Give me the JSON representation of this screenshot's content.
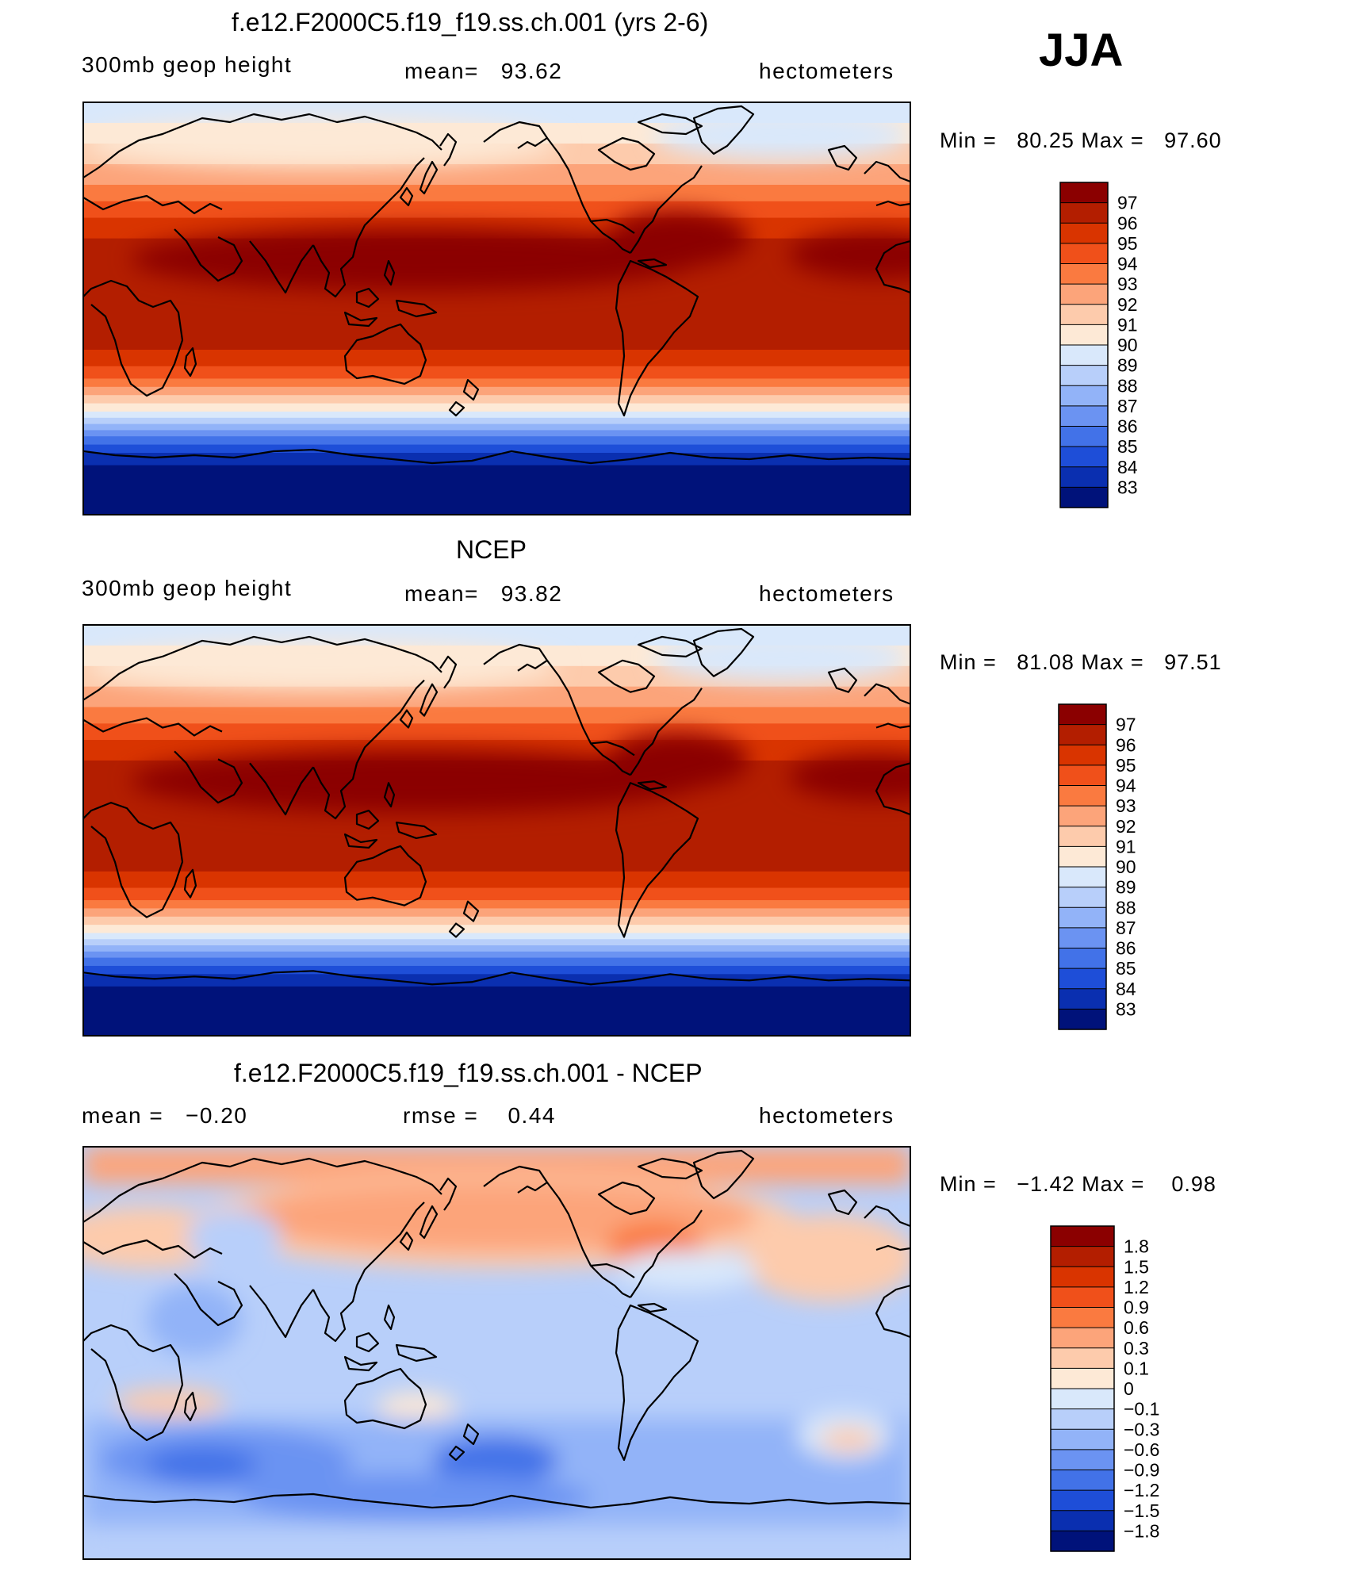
{
  "season": "JJA",
  "chart_data": [
    {
      "type": "heatmap",
      "title": "f.e12.F2000C5.f19_f19.ss.ch.001 (yrs 2-6)",
      "left_label": "300mb geop height",
      "center_label": "mean=   93.62",
      "units": "hectometers",
      "min_max_text": "Min =   80.25 Max =   97.60",
      "min": 80.25,
      "max": 97.6,
      "mean": 93.62,
      "colorbar": {
        "levels": [
          "97",
          "96",
          "95",
          "94",
          "93",
          "92",
          "91",
          "90",
          "89",
          "88",
          "87",
          "86",
          "85",
          "84",
          "83"
        ],
        "colors": [
          "#8b0000",
          "#b31e00",
          "#d93400",
          "#f0501a",
          "#fa7a40",
          "#fca47a",
          "#fdcbac",
          "#fde9d6",
          "#d9e8fb",
          "#b8cffa",
          "#92b3f8",
          "#6b93f2",
          "#4272e8",
          "#1e4ed8",
          "#0a2fb0",
          "#00127a"
        ]
      }
    },
    {
      "type": "heatmap",
      "title": "NCEP",
      "left_label": "300mb geop height",
      "center_label": "mean=   93.82",
      "units": "hectometers",
      "min_max_text": "Min =   81.08 Max =   97.51",
      "min": 81.08,
      "max": 97.51,
      "mean": 93.82,
      "colorbar": {
        "levels": [
          "97",
          "96",
          "95",
          "94",
          "93",
          "92",
          "91",
          "90",
          "89",
          "88",
          "87",
          "86",
          "85",
          "84",
          "83"
        ],
        "colors": [
          "#8b0000",
          "#b31e00",
          "#d93400",
          "#f0501a",
          "#fa7a40",
          "#fca47a",
          "#fdcbac",
          "#fde9d6",
          "#d9e8fb",
          "#b8cffa",
          "#92b3f8",
          "#6b93f2",
          "#4272e8",
          "#1e4ed8",
          "#0a2fb0",
          "#00127a"
        ]
      }
    },
    {
      "type": "heatmap",
      "title": "f.e12.F2000C5.f19_f19.ss.ch.001 - NCEP",
      "left_label": "mean =   −0.20",
      "center_label": "rmse =    0.44",
      "units": "hectometers",
      "min_max_text": "Min =   −1.42 Max =    0.98",
      "min": -1.42,
      "max": 0.98,
      "mean": -0.2,
      "rmse": 0.44,
      "colorbar": {
        "levels": [
          "1.8",
          "1.5",
          "1.2",
          "0.9",
          "0.6",
          "0.3",
          "0.1",
          "0",
          "−0.1",
          "−0.3",
          "−0.6",
          "−0.9",
          "−1.2",
          "−1.5",
          "−1.8"
        ],
        "colors": [
          "#8b0000",
          "#b31e00",
          "#d93400",
          "#f0501a",
          "#fa7a40",
          "#fca47a",
          "#fdcbac",
          "#fde9d6",
          "#d9e8fb",
          "#b8cffa",
          "#92b3f8",
          "#6b93f2",
          "#4272e8",
          "#1e4ed8",
          "#0a2fb0",
          "#00127a"
        ]
      }
    }
  ]
}
